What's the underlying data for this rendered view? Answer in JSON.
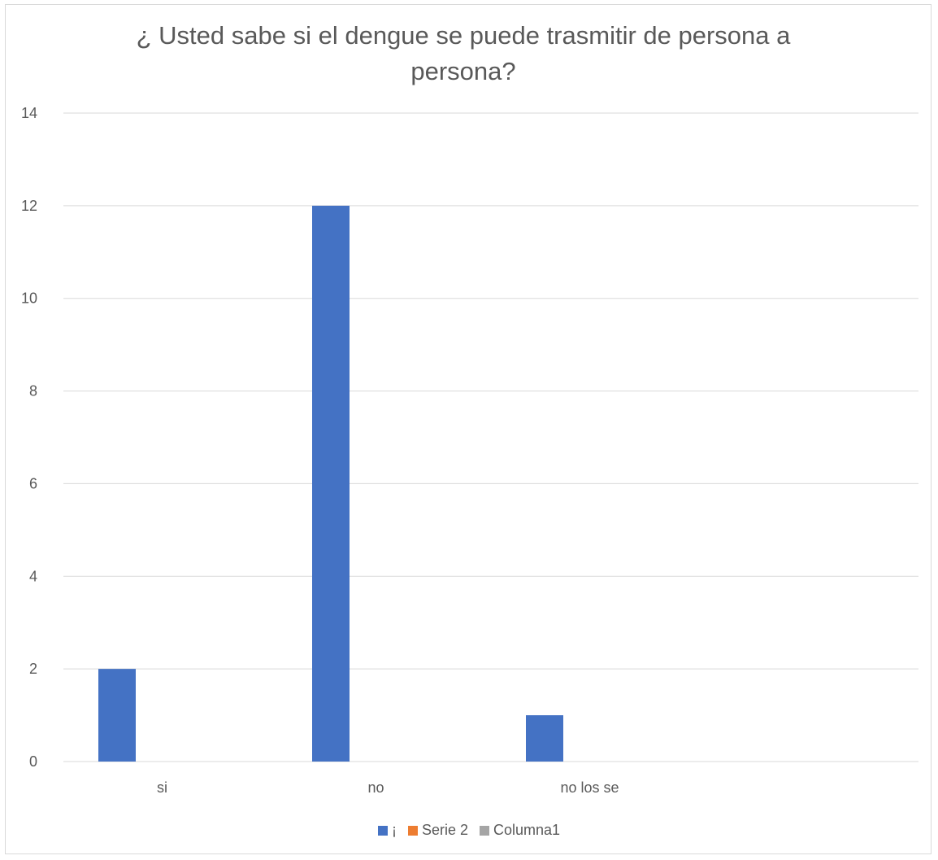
{
  "chart_data": {
    "type": "bar",
    "title": "¿ Usted sabe si el dengue se puede trasmitir de persona a persona?",
    "categories": [
      "si",
      "no",
      "no los se",
      ""
    ],
    "series": [
      {
        "name": "¡",
        "color": "#4472C4",
        "values": [
          2,
          12,
          1,
          null
        ]
      },
      {
        "name": "Serie 2",
        "color": "#ED7D31",
        "values": [
          null,
          null,
          null,
          null
        ]
      },
      {
        "name": "Columna1",
        "color": "#A5A5A5",
        "values": [
          null,
          null,
          null,
          null
        ]
      }
    ],
    "ylim": [
      0,
      14
    ],
    "yticks": [
      "0",
      "2",
      "4",
      "6",
      "8",
      "10",
      "12",
      "14"
    ],
    "grid": true,
    "legend_position": "bottom"
  }
}
